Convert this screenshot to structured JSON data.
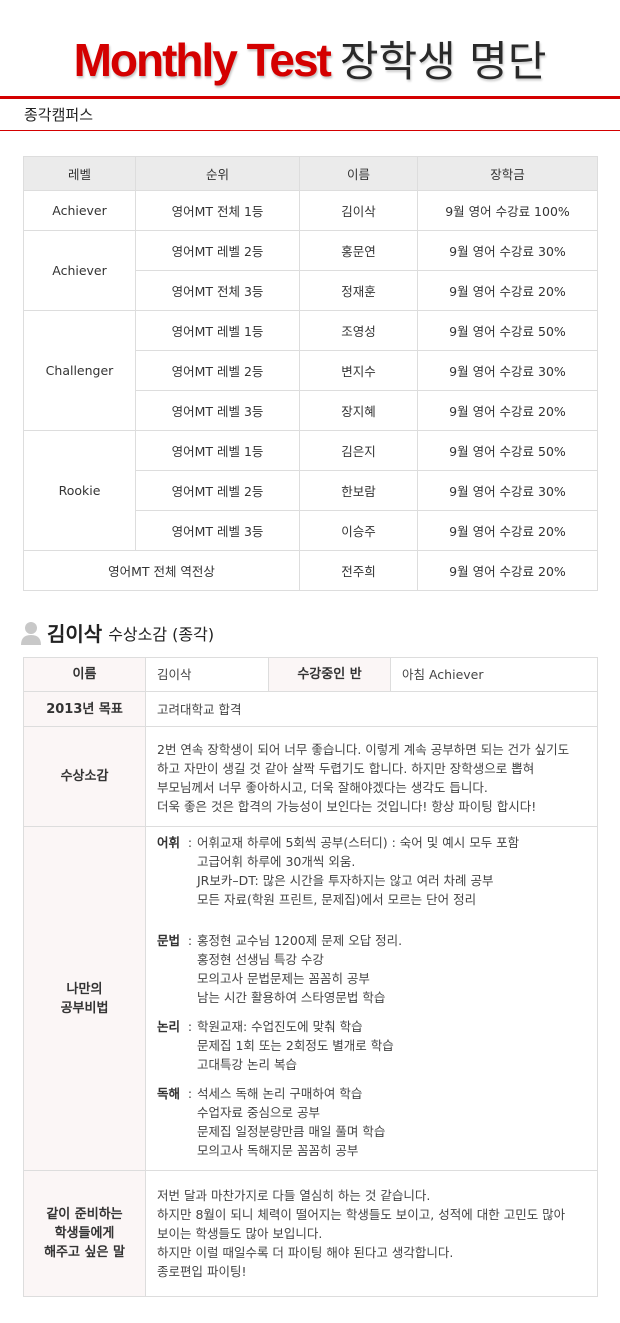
{
  "header": {
    "title_en": "Monthly Test",
    "title_ko": "장학생 명단",
    "campus": "종각캠퍼스"
  },
  "scholarship_table": {
    "columns": [
      "레벨",
      "순위",
      "이름",
      "장학금"
    ],
    "groups": [
      {
        "level": "Achiever",
        "rows": [
          {
            "rank": "영어MT 전체 1등",
            "name": "김이삭",
            "award": "9월 영어 수강료 100%"
          }
        ]
      },
      {
        "level": "Achiever",
        "rows": [
          {
            "rank": "영어MT 레벨 2등",
            "name": "홍문연",
            "award": "9월 영어 수강료 30%"
          },
          {
            "rank": "영어MT 전체 3등",
            "name": "정재훈",
            "award": "9월 영어 수강료 20%"
          }
        ]
      },
      {
        "level": "Challenger",
        "rows": [
          {
            "rank": "영어MT 레벨 1등",
            "name": "조영성",
            "award": "9월 영어 수강료 50%"
          },
          {
            "rank": "영어MT 레벨 2등",
            "name": "변지수",
            "award": "9월 영어 수강료 30%"
          },
          {
            "rank": "영어MT 레벨 3등",
            "name": "장지혜",
            "award": "9월 영어 수강료 20%"
          }
        ]
      },
      {
        "level": "Rookie",
        "rows": [
          {
            "rank": "영어MT 레벨 1등",
            "name": "김은지",
            "award": "9월 영어 수강료 50%"
          },
          {
            "rank": "영어MT 레벨 2등",
            "name": "한보람",
            "award": "9월 영어 수강료 30%"
          },
          {
            "rank": "영어MT 레벨 3등",
            "name": "이승주",
            "award": "9월 영어 수강료 20%"
          }
        ]
      }
    ],
    "special": {
      "label": "영어MT 전체 역전상",
      "name": "전주희",
      "award": "9월 영어 수강료 20%"
    }
  },
  "review": {
    "icon": "user-icon",
    "name": "김이삭",
    "title_rest": "수상소감 (종각)",
    "name_label": "이름",
    "name_value": "김이삭",
    "class_label": "수강중인 반",
    "class_value": "아침 Achiever",
    "goal_label": "2013년 목표",
    "goal_value": "고려대학교 합격",
    "speech_label": "수상소감",
    "speech_lines": [
      "2번 연속 장학생이 되어 너무 좋습니다. 이렇게 계속 공부하면 되는 건가 싶기도",
      "하고 자만이 생길 것 같아 살짝 두렵기도 합니다. 하지만 장학생으로 뽑혀",
      "부모님께서 너무 좋아하시고, 더욱 잘해야겠다는 생각도 듭니다.",
      "더욱 좋은 것은 합격의 가능성이 보인다는 것입니다! 항상 파이팅 합시다!"
    ],
    "method_label": "나만의\n공부비법",
    "methods": [
      {
        "subject": "어휘",
        "lines": [
          "어휘교재 하루에 5회씩 공부(스터디) : 숙어 및 예시 모두 포함",
          "고급어휘 하루에 30개씩 외움.",
          "JR보카–DT: 많은 시간을 투자하지는 않고 여러 차례 공부",
          "모든 자료(학원 프린트, 문제집)에서 모르는 단어 정리"
        ]
      },
      {
        "subject": "문법",
        "lines": [
          "홍정현 교수님 1200제 문제 오답 정리.",
          "홍정현 선생님 특강 수강",
          "모의고사 문법문제는 꼼꼼히 공부",
          "남는 시간 활용하여 스타영문법 학습"
        ]
      },
      {
        "subject": "논리",
        "lines": [
          "학원교재: 수업진도에 맞춰 학습",
          "문제집 1회 또는 2회정도 별개로 학습",
          "고대특강 논리 복습"
        ]
      },
      {
        "subject": "독해",
        "lines": [
          "석세스 독해 논리 구매하여 학습",
          "수업자료 중심으로 공부",
          "문제집 일정분량만큼 매일 풀며 학습",
          "모의고사 독해지문 꼼꼼히 공부"
        ]
      }
    ],
    "advice_label": "같이 준비하는\n학생들에게\n해주고 싶은 말",
    "advice_lines": [
      "저번 달과 마찬가지로 다들 열심히 하는 것 같습니다.",
      "하지만 8월이 되니 체력이 떨어지는 학생들도 보이고, 성적에 대한 고민도 많아",
      "보이는 학생들도 많아 보입니다.",
      "하지만 이럴 때일수록 더 파이팅 해야 된다고 생각합니다.",
      "종로편입 파이팅!"
    ]
  },
  "colors": {
    "accent": "#d40000",
    "header_bg": "#ebebeb",
    "label_bg": "#fbf6f6"
  }
}
